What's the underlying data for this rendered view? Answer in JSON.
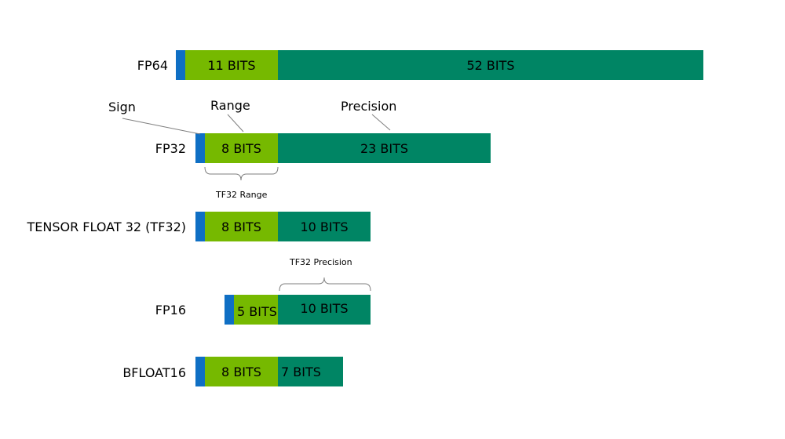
{
  "colors": {
    "sign": "#0f6fc4",
    "range": "#76b900",
    "precision": "#008564"
  },
  "formats": [
    {
      "name": "FP64",
      "exponent_label": "11 BITS",
      "mantissa_label": "52 BITS"
    },
    {
      "name": "FP32",
      "exponent_label": "8 BITS",
      "mantissa_label": "23 BITS"
    },
    {
      "name": "TENSOR FLOAT 32 (TF32)",
      "exponent_label": "8 BITS",
      "mantissa_label": "10 BITS"
    },
    {
      "name": "FP16",
      "exponent_label": "5 BITS",
      "mantissa_label": "10 BITS"
    },
    {
      "name": "BFLOAT16",
      "exponent_label": "8 BITS",
      "mantissa_label": "7 BITS"
    }
  ],
  "annotations": {
    "sign": "Sign",
    "range": "Range",
    "precision": "Precision",
    "tf32_range": "TF32 Range",
    "tf32_precision": "TF32 Precision"
  }
}
